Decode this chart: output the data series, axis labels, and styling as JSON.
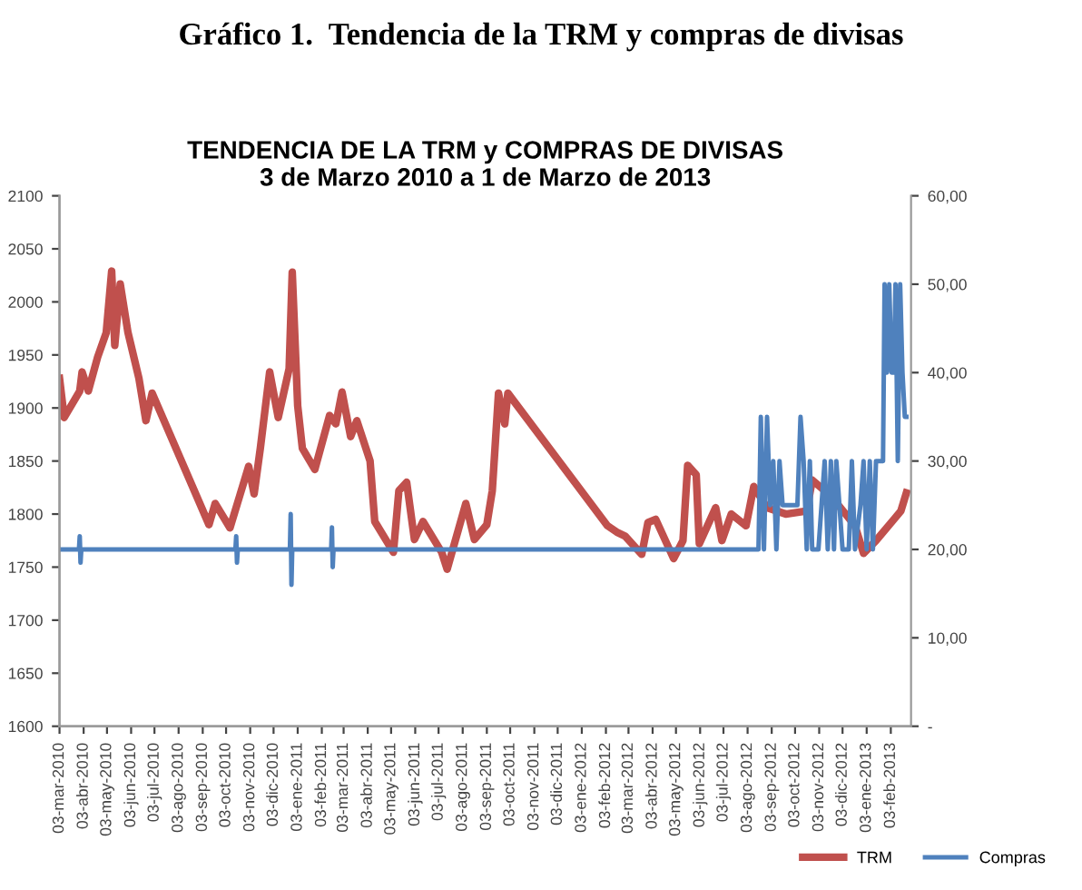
{
  "chart_data": {
    "type": "line",
    "title": "TENDENCIA DE LA TRM y COMPRAS DE DIVISAS",
    "subtitle": "3 de Marzo 2010 a 1 de Marzo de 2013",
    "annotations": [
      "Gráfico 1.  Tendencia de la TRM y compras de divisas"
    ],
    "xlim": [
      "2010-03-03",
      "2013-03-01"
    ],
    "xticks": [
      {
        "value": "2010-03-03",
        "label": "03-mar-2010"
      },
      {
        "value": "2010-04-03",
        "label": "03-abr-2010"
      },
      {
        "value": "2010-05-03",
        "label": "03-may-2010"
      },
      {
        "value": "2010-06-03",
        "label": "03-jun-2010"
      },
      {
        "value": "2010-07-03",
        "label": "03-jul-2010"
      },
      {
        "value": "2010-08-03",
        "label": "03-ago-2010"
      },
      {
        "value": "2010-09-03",
        "label": "03-sep-2010"
      },
      {
        "value": "2010-10-03",
        "label": "03-oct-2010"
      },
      {
        "value": "2010-11-03",
        "label": "03-nov-2010"
      },
      {
        "value": "2010-12-03",
        "label": "03-dic-2010"
      },
      {
        "value": "2011-01-03",
        "label": "03-ene-2011"
      },
      {
        "value": "2011-02-03",
        "label": "03-feb-2011"
      },
      {
        "value": "2011-03-03",
        "label": "03-mar-2011"
      },
      {
        "value": "2011-04-03",
        "label": "03-abr-2011"
      },
      {
        "value": "2011-05-03",
        "label": "03-may-2011"
      },
      {
        "value": "2011-06-03",
        "label": "03-jun-2011"
      },
      {
        "value": "2011-07-03",
        "label": "03-jul-2011"
      },
      {
        "value": "2011-08-03",
        "label": "03-ago-2011"
      },
      {
        "value": "2011-09-03",
        "label": "03-sep-2011"
      },
      {
        "value": "2011-10-03",
        "label": "03-oct-2011"
      },
      {
        "value": "2011-11-03",
        "label": "03-nov-2011"
      },
      {
        "value": "2011-12-03",
        "label": "03-dic-2011"
      },
      {
        "value": "2012-01-03",
        "label": "03-ene-2012"
      },
      {
        "value": "2012-02-03",
        "label": "03-feb-2012"
      },
      {
        "value": "2012-03-03",
        "label": "03-mar-2012"
      },
      {
        "value": "2012-04-03",
        "label": "03-abr-2012"
      },
      {
        "value": "2012-05-03",
        "label": "03-may-2012"
      },
      {
        "value": "2012-06-03",
        "label": "03-jun-2012"
      },
      {
        "value": "2012-07-03",
        "label": "03-jul-2012"
      },
      {
        "value": "2012-08-03",
        "label": "03-ago-2012"
      },
      {
        "value": "2012-09-03",
        "label": "03-sep-2012"
      },
      {
        "value": "2012-10-03",
        "label": "03-oct-2012"
      },
      {
        "value": "2012-11-03",
        "label": "03-nov-2012"
      },
      {
        "value": "2012-12-03",
        "label": "03-dic-2012"
      },
      {
        "value": "2013-01-03",
        "label": "03-ene-2013"
      },
      {
        "value": "2013-02-03",
        "label": "03-feb-2013"
      }
    ],
    "ylim": [
      1600,
      2100
    ],
    "yticks": [
      1600,
      1650,
      1700,
      1750,
      1800,
      1850,
      1900,
      1950,
      2000,
      2050,
      2100
    ],
    "y2lim": [
      0,
      60
    ],
    "y2ticks": [
      {
        "value": 0,
        "label": "-"
      },
      {
        "value": 10,
        "label": "10,00"
      },
      {
        "value": 20,
        "label": "20,00"
      },
      {
        "value": 30,
        "label": "30,00"
      },
      {
        "value": 40,
        "label": "40,00"
      },
      {
        "value": 50,
        "label": "50,00"
      },
      {
        "value": 60,
        "label": "60,00"
      }
    ],
    "grid": false,
    "legend": "bottom right",
    "marker": "none",
    "line_style": "solid",
    "series": [
      {
        "name": "TRM",
        "color": "#c0504d",
        "x": [
          "2010-03-03",
          "2010-03-09",
          "2010-03-29",
          "2010-04-01",
          "2010-04-09",
          "2010-04-21",
          "2010-05-02",
          "2010-05-09",
          "2010-05-13",
          "2010-05-20",
          "2010-05-30",
          "2010-06-13",
          "2010-06-22",
          "2010-06-30",
          "2010-09-11",
          "2010-09-19",
          "2010-10-08",
          "2010-10-20",
          "2010-11-01",
          "2010-11-08",
          "2010-11-16",
          "2010-11-28",
          "2010-12-09",
          "2010-12-23",
          "2010-12-27",
          "2011-01-03",
          "2011-01-09",
          "2011-01-25",
          "2011-02-13",
          "2011-02-21",
          "2011-03-01",
          "2011-03-12",
          "2011-03-20",
          "2011-04-06",
          "2011-04-12",
          "2011-05-06",
          "2011-05-13",
          "2011-05-23",
          "2011-06-02",
          "2011-06-13",
          "2011-07-07",
          "2011-07-14",
          "2011-08-07",
          "2011-08-18",
          "2011-09-03",
          "2011-09-10",
          "2011-09-18",
          "2011-09-26",
          "2011-09-30",
          "2012-02-05",
          "2012-02-17",
          "2012-02-28",
          "2012-03-20",
          "2012-03-28",
          "2012-04-07",
          "2012-04-30",
          "2012-05-12",
          "2012-05-18",
          "2012-05-29",
          "2012-06-02",
          "2012-06-23",
          "2012-07-01",
          "2012-07-13",
          "2012-08-01",
          "2012-08-11",
          "2012-08-28",
          "2012-09-21",
          "2012-10-18",
          "2012-10-25",
          "2012-11-18",
          "2012-12-07",
          "2012-12-19",
          "2012-12-30",
          "2013-01-15",
          "2013-02-07",
          "2013-02-16",
          "2013-02-23"
        ],
        "values": [
          1928,
          1891,
          1916,
          1934,
          1916,
          1948,
          1971,
          2029,
          1959,
          2017,
          1971,
          1928,
          1888,
          1914,
          1790,
          1810,
          1787,
          1816,
          1845,
          1819,
          1862,
          1934,
          1891,
          1937,
          2028,
          1902,
          1862,
          1842,
          1893,
          1885,
          1915,
          1873,
          1888,
          1850,
          1793,
          1764,
          1822,
          1830,
          1776,
          1793,
          1764,
          1748,
          1810,
          1776,
          1790,
          1822,
          1914,
          1885,
          1914,
          1789,
          1783,
          1779,
          1762,
          1792,
          1795,
          1758,
          1775,
          1846,
          1837,
          1772,
          1806,
          1775,
          1800,
          1789,
          1826,
          1806,
          1800,
          1803,
          1832,
          1817,
          1800,
          1789,
          1763,
          1775,
          1795,
          1803,
          1820
        ]
      },
      {
        "name": "Compras",
        "color": "#4f81bd",
        "axis": "y2",
        "x": [
          "2010-03-03",
          "2010-03-28",
          "2010-03-29",
          "2010-03-30",
          "2010-03-31",
          "2010-06-18",
          "2010-09-15",
          "2010-10-15",
          "2010-10-16",
          "2010-10-17",
          "2010-10-18",
          "2010-12-24",
          "2010-12-25",
          "2010-12-26",
          "2010-12-27",
          "2011-02-15",
          "2011-02-16",
          "2011-02-17",
          "2011-02-18",
          "2012-08-17",
          "2012-08-20",
          "2012-08-24",
          "2012-08-28",
          "2012-09-01",
          "2012-09-05",
          "2012-09-09",
          "2012-09-13",
          "2012-09-17",
          "2012-10-06",
          "2012-10-10",
          "2012-10-14",
          "2012-10-18",
          "2012-10-22",
          "2012-10-25",
          "2012-11-02",
          "2012-11-06",
          "2012-11-10",
          "2012-11-14",
          "2012-11-18",
          "2012-11-22",
          "2012-11-25",
          "2012-11-29",
          "2012-12-03",
          "2012-12-11",
          "2012-12-15",
          "2012-12-19",
          "2012-12-26",
          "2012-12-30",
          "2013-01-03",
          "2013-01-07",
          "2013-01-11",
          "2013-01-15",
          "2013-01-19",
          "2013-01-24",
          "2013-01-26",
          "2013-01-29",
          "2013-02-01",
          "2013-02-04",
          "2013-02-07",
          "2013-02-09",
          "2013-02-12",
          "2013-02-15",
          "2013-02-18",
          "2013-02-21",
          "2013-02-23"
        ],
        "values": [
          20,
          20,
          21.5,
          18.5,
          20,
          20,
          20,
          20,
          21.5,
          18.5,
          20,
          20,
          24,
          16,
          20,
          20,
          22.5,
          18,
          20,
          20,
          35,
          20,
          35,
          25,
          30,
          20,
          30,
          25,
          25,
          35,
          30,
          20,
          30,
          20,
          20,
          25,
          30,
          20,
          30,
          20,
          30,
          25,
          20,
          20,
          30,
          20,
          25,
          30,
          20,
          30,
          20,
          30,
          30,
          30,
          50,
          40,
          50,
          40,
          40,
          50,
          30,
          50,
          40,
          35,
          35
        ]
      }
    ]
  }
}
